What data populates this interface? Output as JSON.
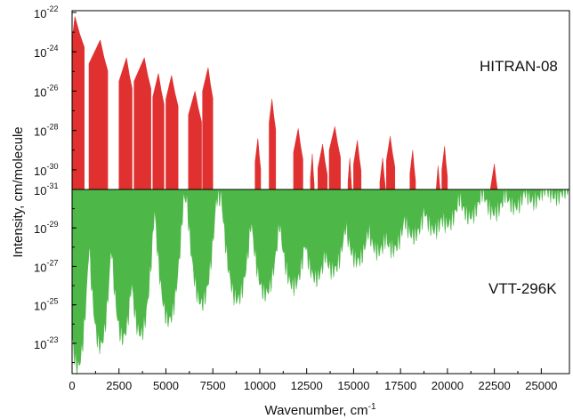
{
  "chart_data": {
    "type": "area",
    "title": "",
    "xlabel_base": "Wavenumber, cm",
    "xlabel_sup": "-1",
    "ylabel": "Intensity, cm/molecule",
    "xlim": [
      0,
      26500
    ],
    "x_ticks": [
      {
        "value": 0,
        "label": "0"
      },
      {
        "value": 2500,
        "label": "2500"
      },
      {
        "value": 5000,
        "label": "5000"
      },
      {
        "value": 7500,
        "label": "7500"
      },
      {
        "value": 10000,
        "label": "10000"
      },
      {
        "value": 12500,
        "label": "12500"
      },
      {
        "value": 15000,
        "label": "15000"
      },
      {
        "value": 17500,
        "label": "17500"
      },
      {
        "value": 20000,
        "label": "20000"
      },
      {
        "value": 22500,
        "label": "22500"
      },
      {
        "value": 25000,
        "label": "25000"
      }
    ],
    "colors": {
      "top": "#e03030",
      "bottom": "#4db848"
    },
    "top_panel": {
      "series": "HITRAN-08",
      "ylim_log10": [
        -31,
        -22
      ],
      "y_ticks": [
        {
          "value": -22,
          "base": "10",
          "exp": "-22"
        },
        {
          "value": -24,
          "base": "10",
          "exp": "-24"
        },
        {
          "value": -26,
          "base": "10",
          "exp": "-26"
        },
        {
          "value": -28,
          "base": "10",
          "exp": "-28"
        },
        {
          "value": -30,
          "base": "10",
          "exp": "-30"
        }
      ],
      "bands": [
        {
          "x0": 0,
          "x1": 650,
          "peak_x": 150,
          "peak_log10": -22.2
        },
        {
          "x0": 900,
          "x1": 1900,
          "peak_x": 1500,
          "peak_log10": -23.4
        },
        {
          "x0": 2500,
          "x1": 3200,
          "peak_x": 2900,
          "peak_log10": -24.3
        },
        {
          "x0": 3300,
          "x1": 4200,
          "peak_x": 3850,
          "peak_log10": -24.3
        },
        {
          "x0": 4300,
          "x1": 4900,
          "peak_x": 4600,
          "peak_log10": -25.1
        },
        {
          "x0": 5000,
          "x1": 5650,
          "peak_x": 5300,
          "peak_log10": -25.2
        },
        {
          "x0": 6200,
          "x1": 6900,
          "peak_x": 6550,
          "peak_log10": -26.0
        },
        {
          "x0": 6950,
          "x1": 7500,
          "peak_x": 7250,
          "peak_log10": -24.8
        },
        {
          "x0": 9750,
          "x1": 10050,
          "peak_x": 9900,
          "peak_log10": -28.4
        },
        {
          "x0": 10500,
          "x1": 10850,
          "peak_x": 10650,
          "peak_log10": -26.4
        },
        {
          "x0": 11800,
          "x1": 12300,
          "peak_x": 12050,
          "peak_log10": -27.9
        },
        {
          "x0": 12700,
          "x1": 12900,
          "peak_x": 12800,
          "peak_log10": -29.2
        },
        {
          "x0": 13100,
          "x1": 13600,
          "peak_x": 13350,
          "peak_log10": -28.7
        },
        {
          "x0": 13700,
          "x1": 14300,
          "peak_x": 14000,
          "peak_log10": -27.8
        },
        {
          "x0": 14700,
          "x1": 14900,
          "peak_x": 14800,
          "peak_log10": -29.4
        },
        {
          "x0": 15000,
          "x1": 15400,
          "peak_x": 15200,
          "peak_log10": -28.5
        },
        {
          "x0": 16400,
          "x1": 16700,
          "peak_x": 16550,
          "peak_log10": -29.4
        },
        {
          "x0": 16750,
          "x1": 17200,
          "peak_x": 16950,
          "peak_log10": -28.3
        },
        {
          "x0": 18000,
          "x1": 18300,
          "peak_x": 18150,
          "peak_log10": -29.0
        },
        {
          "x0": 19400,
          "x1": 19650,
          "peak_x": 19500,
          "peak_log10": -29.8
        },
        {
          "x0": 19700,
          "x1": 20000,
          "peak_x": 19850,
          "peak_log10": -28.8
        },
        {
          "x0": 22300,
          "x1": 22700,
          "peak_x": 22500,
          "peak_log10": -29.7
        }
      ]
    },
    "bottom_panel": {
      "series": "VTT-296K",
      "ylim_log10": [
        -31,
        -21.7
      ],
      "y_ticks": [
        {
          "value": -31,
          "base": "10",
          "exp": "-31"
        },
        {
          "value": -29,
          "base": "10",
          "exp": "-29"
        },
        {
          "value": -27,
          "base": "10",
          "exp": "-27"
        },
        {
          "value": -25,
          "base": "10",
          "exp": "-25"
        },
        {
          "value": -23,
          "base": "10",
          "exp": "-23"
        }
      ],
      "bands": [
        {
          "center": 300,
          "peak_log10": -21.8
        },
        {
          "center": 1500,
          "peak_log10": -22.9
        },
        {
          "center": 2700,
          "peak_log10": -23.3
        },
        {
          "center": 3650,
          "peak_log10": -23.5
        },
        {
          "center": 5150,
          "peak_log10": -24.2
        },
        {
          "center": 6900,
          "peak_log10": -25.1
        },
        {
          "center": 8800,
          "peak_log10": -25.3
        },
        {
          "center": 10300,
          "peak_log10": -25.6
        },
        {
          "center": 11800,
          "peak_log10": -26.0
        },
        {
          "center": 13000,
          "peak_log10": -26.4
        },
        {
          "center": 13900,
          "peak_log10": -26.8
        },
        {
          "center": 15200,
          "peak_log10": -27.3
        },
        {
          "center": 16300,
          "peak_log10": -27.8
        },
        {
          "center": 17100,
          "peak_log10": -27.9
        },
        {
          "center": 18200,
          "peak_log10": -28.6
        },
        {
          "center": 19300,
          "peak_log10": -28.9
        },
        {
          "center": 20000,
          "peak_log10": -29.2
        },
        {
          "center": 21200,
          "peak_log10": -29.6
        },
        {
          "center": 22500,
          "peak_log10": -29.8
        },
        {
          "center": 23600,
          "peak_log10": -30.1
        },
        {
          "center": 24600,
          "peak_log10": -30.4
        },
        {
          "center": 25800,
          "peak_log10": -30.6
        }
      ]
    }
  }
}
